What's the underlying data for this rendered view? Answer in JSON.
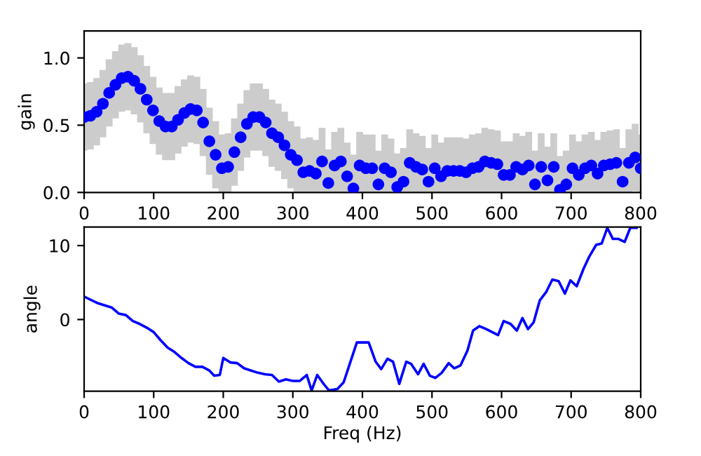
{
  "chart_data": [
    {
      "type": "scatter",
      "ylabel": "gain",
      "marker": "circle",
      "grid": false,
      "xlim": [
        0,
        800
      ],
      "xticks": [
        0,
        100,
        200,
        300,
        400,
        500,
        600,
        700,
        800
      ],
      "ylim": [
        0,
        1.2
      ],
      "yticks": [
        {
          "value": 0,
          "label": "0.0"
        },
        {
          "value": 0.5,
          "label": "0.5"
        },
        {
          "value": 1,
          "label": "1.0"
        }
      ],
      "x": [
        0,
        9,
        18,
        27,
        36,
        45,
        54,
        63,
        72,
        81,
        90,
        99,
        108,
        117,
        126,
        135,
        144,
        153,
        162,
        171,
        180,
        189,
        198,
        207,
        216,
        225,
        234,
        243,
        252,
        261,
        270,
        279,
        288,
        297,
        306,
        315,
        324,
        333,
        342,
        351,
        360,
        369,
        378,
        387,
        396,
        405,
        414,
        423,
        432,
        441,
        450,
        459,
        468,
        477,
        486,
        495,
        504,
        513,
        522,
        531,
        540,
        549,
        558,
        567,
        576,
        585,
        594,
        603,
        612,
        621,
        630,
        639,
        648,
        657,
        666,
        675,
        684,
        693,
        702,
        711,
        720,
        729,
        738,
        747,
        756,
        765,
        774,
        783,
        792,
        800
      ],
      "series": [
        {
          "color": "#0000ff",
          "values": [
            0.56,
            0.57,
            0.6,
            0.66,
            0.74,
            0.8,
            0.85,
            0.86,
            0.83,
            0.77,
            0.69,
            0.61,
            0.53,
            0.49,
            0.49,
            0.54,
            0.59,
            0.62,
            0.61,
            0.52,
            0.38,
            0.28,
            0.18,
            0.19,
            0.3,
            0.41,
            0.51,
            0.56,
            0.56,
            0.52,
            0.44,
            0.41,
            0.35,
            0.28,
            0.24,
            0.15,
            0.16,
            0.14,
            0.23,
            0.07,
            0.2,
            0.23,
            0.12,
            0.03,
            0.2,
            0.18,
            0.18,
            0.06,
            0.18,
            0.15,
            0.04,
            0.08,
            0.22,
            0.19,
            0.17,
            0.08,
            0.18,
            0.12,
            0.16,
            0.16,
            0.16,
            0.15,
            0.18,
            0.19,
            0.23,
            0.22,
            0.21,
            0.13,
            0.13,
            0.19,
            0.17,
            0.2,
            0.06,
            0.19,
            0.09,
            0.19,
            0.02,
            0.06,
            0.18,
            0.13,
            0.18,
            0.2,
            0.14,
            0.2,
            0.21,
            0.22,
            0.08,
            0.22,
            0.26,
            0.18
          ],
          "errors": [
            [
              0.31,
              0.81
            ],
            [
              0.32,
              0.82
            ],
            [
              0.35,
              0.85
            ],
            [
              0.41,
              0.91
            ],
            [
              0.49,
              0.99
            ],
            [
              0.55,
              1.05
            ],
            [
              0.6,
              1.1
            ],
            [
              0.61,
              1.11
            ],
            [
              0.58,
              1.08
            ],
            [
              0.52,
              1.02
            ],
            [
              0.44,
              0.94
            ],
            [
              0.36,
              0.86
            ],
            [
              0.28,
              0.78
            ],
            [
              0.24,
              0.74
            ],
            [
              0.24,
              0.74
            ],
            [
              0.29,
              0.79
            ],
            [
              0.34,
              0.84
            ],
            [
              0.37,
              0.87
            ],
            [
              0.36,
              0.86
            ],
            [
              0.27,
              0.77
            ],
            [
              0.13,
              0.63
            ],
            [
              0.03,
              0.53
            ],
            [
              0,
              0.43
            ],
            [
              0,
              0.44
            ],
            [
              0.05,
              0.55
            ],
            [
              0.16,
              0.66
            ],
            [
              0.26,
              0.76
            ],
            [
              0.31,
              0.81
            ],
            [
              0.31,
              0.81
            ],
            [
              0.27,
              0.77
            ],
            [
              0.19,
              0.69
            ],
            [
              0.16,
              0.66
            ],
            [
              0.1,
              0.6
            ],
            [
              0.03,
              0.53
            ],
            [
              0,
              0.49
            ],
            [
              0,
              0.4
            ],
            [
              0,
              0.41
            ],
            [
              0,
              0.39
            ],
            [
              0,
              0.48
            ],
            [
              0,
              0.32
            ],
            [
              0,
              0.45
            ],
            [
              0,
              0.48
            ],
            [
              0,
              0.37
            ],
            [
              0,
              0.28
            ],
            [
              0,
              0.45
            ],
            [
              0,
              0.43
            ],
            [
              0,
              0.43
            ],
            [
              0,
              0.31
            ],
            [
              0,
              0.43
            ],
            [
              0,
              0.4
            ],
            [
              0,
              0.29
            ],
            [
              0,
              0.33
            ],
            [
              0,
              0.47
            ],
            [
              0,
              0.44
            ],
            [
              0,
              0.42
            ],
            [
              0,
              0.33
            ],
            [
              0,
              0.43
            ],
            [
              0,
              0.37
            ],
            [
              0,
              0.41
            ],
            [
              0,
              0.41
            ],
            [
              0,
              0.41
            ],
            [
              0,
              0.4
            ],
            [
              0,
              0.43
            ],
            [
              0,
              0.44
            ],
            [
              0,
              0.48
            ],
            [
              0,
              0.47
            ],
            [
              0,
              0.46
            ],
            [
              0,
              0.38
            ],
            [
              0,
              0.38
            ],
            [
              0,
              0.44
            ],
            [
              0,
              0.42
            ],
            [
              0,
              0.45
            ],
            [
              0,
              0.31
            ],
            [
              0,
              0.44
            ],
            [
              0,
              0.34
            ],
            [
              0,
              0.44
            ],
            [
              0,
              0.27
            ],
            [
              0,
              0.31
            ],
            [
              0,
              0.43
            ],
            [
              0,
              0.38
            ],
            [
              0,
              0.43
            ],
            [
              0,
              0.45
            ],
            [
              0,
              0.39
            ],
            [
              0,
              0.45
            ],
            [
              0,
              0.46
            ],
            [
              0,
              0.47
            ],
            [
              0,
              0.33
            ],
            [
              0,
              0.47
            ],
            [
              0.01,
              0.51
            ],
            [
              0,
              0.43
            ]
          ]
        }
      ]
    },
    {
      "type": "line",
      "xlabel": "Freq (Hz)",
      "ylabel": "angle",
      "marker": "none",
      "line_style": "solid",
      "grid": false,
      "xlim": [
        0,
        800
      ],
      "xticks": [
        0,
        100,
        200,
        300,
        400,
        500,
        600,
        700,
        800
      ],
      "ylim": [
        -9.7,
        12.5
      ],
      "yticks": [
        0,
        10
      ],
      "x": [
        0,
        20,
        40,
        50,
        60,
        70,
        80,
        90,
        100,
        110,
        120,
        130,
        140,
        150,
        160,
        170,
        180,
        187,
        195,
        200,
        210,
        220,
        230,
        240,
        250,
        260,
        270,
        280,
        290,
        300,
        310,
        320,
        327,
        335,
        345,
        352,
        364,
        373,
        392,
        409,
        419,
        427,
        436,
        444,
        453,
        463,
        470,
        480,
        488,
        497,
        505,
        514,
        524,
        532,
        541,
        551,
        559,
        568,
        578,
        595,
        603,
        613,
        622,
        630,
        638,
        646,
        655,
        664,
        673,
        682,
        691,
        699,
        708,
        718,
        726,
        736,
        744,
        752,
        760,
        768,
        777,
        785,
        794
      ],
      "series": [
        {
          "color": "#0000ff",
          "values": [
            3.1,
            2.2,
            1.6,
            0.8,
            0.6,
            -0.2,
            -0.6,
            -1.1,
            -1.7,
            -2.8,
            -3.8,
            -4.4,
            -5.2,
            -5.9,
            -6.4,
            -6.4,
            -6.9,
            -7.6,
            -7.5,
            -5.2,
            -5.8,
            -5.9,
            -6.6,
            -6.9,
            -7.2,
            -7.4,
            -7.5,
            -8.4,
            -8.1,
            -8.3,
            -8.3,
            -7.5,
            -9.6,
            -7.5,
            -8.8,
            -9.6,
            -9.4,
            -8.5,
            -3.1,
            -3.1,
            -5.7,
            -6.7,
            -5.3,
            -5.7,
            -8.7,
            -5.7,
            -6.0,
            -7.4,
            -6.0,
            -7.6,
            -7.9,
            -7.2,
            -5.9,
            -6.6,
            -6.2,
            -4.2,
            -1.5,
            -0.9,
            -1.3,
            -2.1,
            -0.2,
            -0.6,
            -1.5,
            0.2,
            -1.3,
            -0.4,
            2.6,
            3.7,
            5.4,
            5.2,
            3.5,
            5.3,
            4.5,
            6.9,
            8.5,
            10.1,
            10.3,
            12.4,
            10.9,
            10.9,
            10.5,
            12.4,
            12.4
          ]
        }
      ]
    }
  ]
}
